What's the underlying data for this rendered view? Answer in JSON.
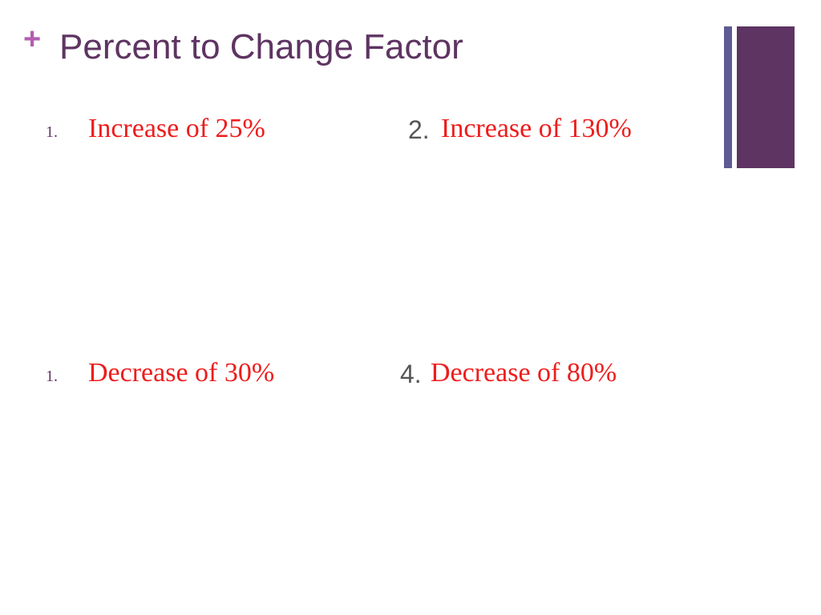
{
  "slide": {
    "title_marker": "+",
    "title": "Percent to Change Factor"
  },
  "problems": [
    {
      "number": "1.",
      "text": "Increase of 25%"
    },
    {
      "number": "2.",
      "text": "Increase of 130%"
    },
    {
      "number": "1.",
      "text": "Decrease of 30%"
    },
    {
      "number": "4.",
      "text": "Decrease of 80%"
    }
  ],
  "colors": {
    "title": "#5e3462",
    "marker": "#b35db0",
    "problem_text": "#ee1c1c",
    "accent_bar_thin": "#5e5b94",
    "accent_bar_thick": "#5e3462"
  }
}
